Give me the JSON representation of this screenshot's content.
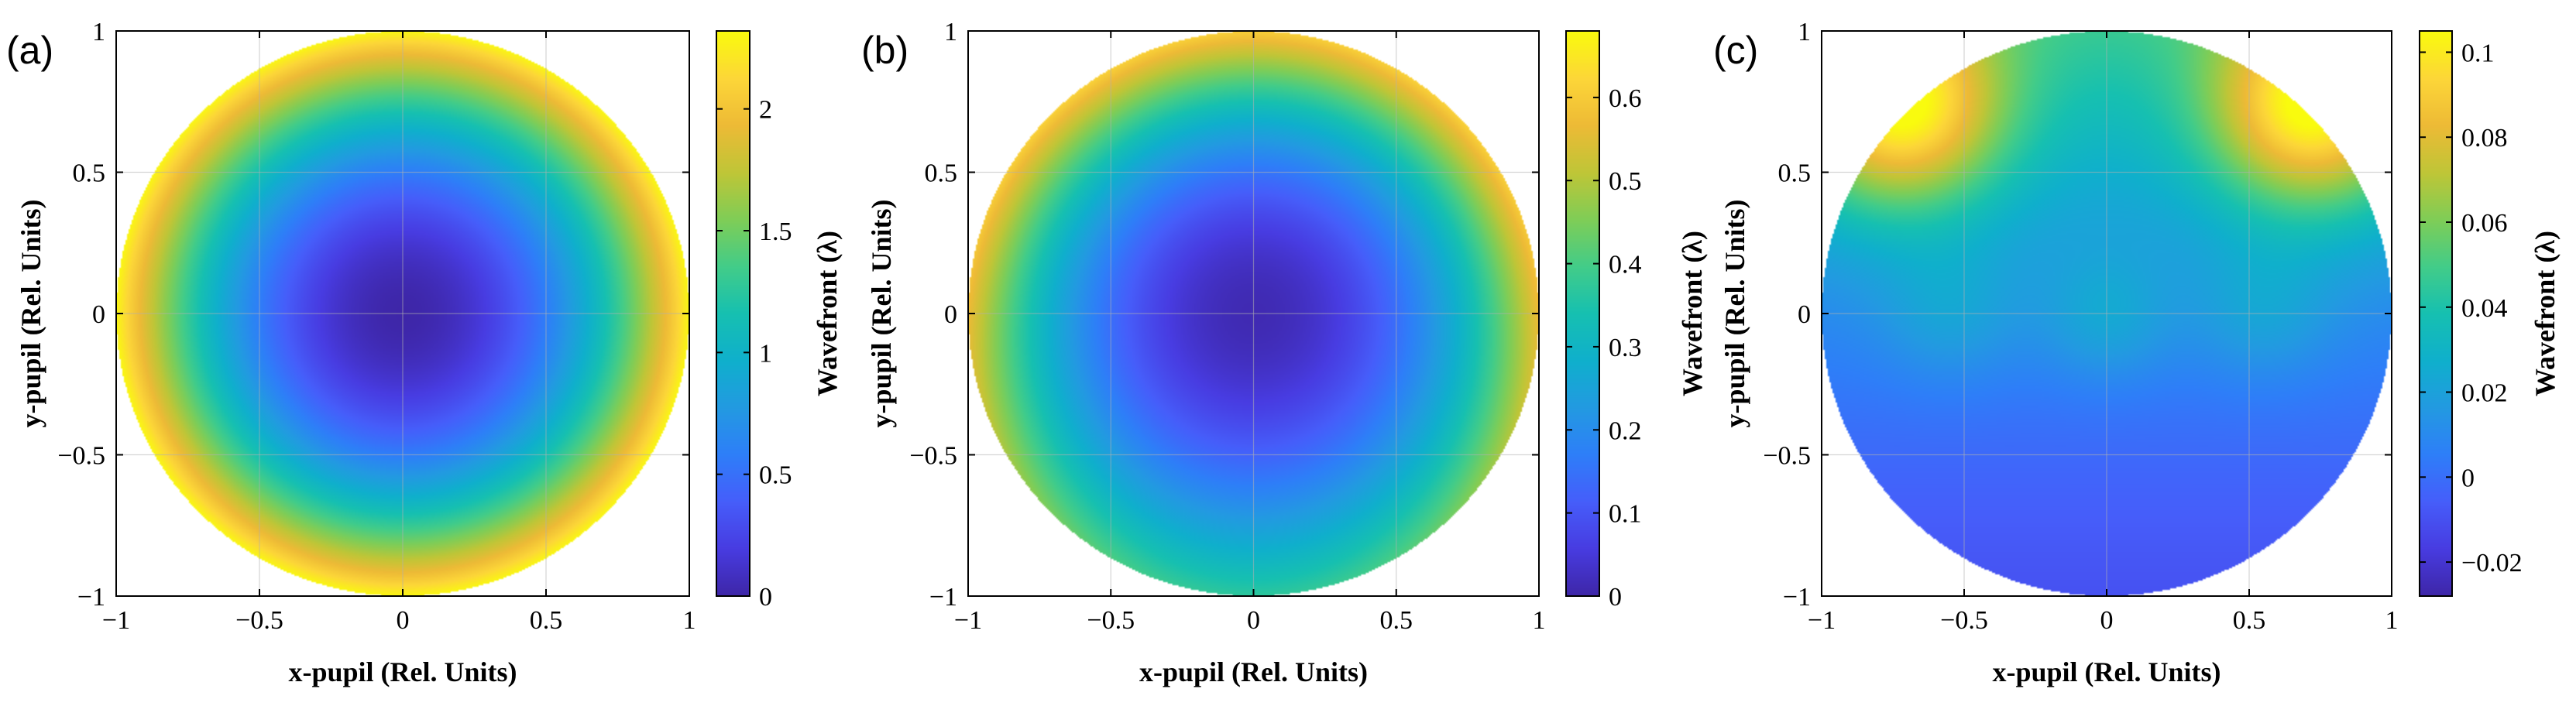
{
  "chart_data": [
    {
      "type": "heatmap",
      "panel_label": "(a)",
      "xlabel": "x-pupil (Rel. Units)",
      "ylabel": "y-pupil (Rel. Units)",
      "xlim": [
        -1,
        1
      ],
      "ylim": [
        -1,
        1
      ],
      "xticks": [
        "-1",
        "-0.5",
        "0",
        "0.5",
        "1"
      ],
      "yticks": [
        "-1",
        "-0.5",
        "0",
        "0.5",
        "1"
      ],
      "grid": true,
      "colorbar": {
        "label": "Wavefront (λ)",
        "range": [
          0,
          2.32
        ],
        "ticks": [
          0,
          0.5,
          1,
          1.5,
          2
        ],
        "tick_labels": [
          "0",
          "0.5",
          "1",
          "1.5",
          "2"
        ]
      },
      "surface": {
        "description": "rotationally symmetric defocus: W = 2.3·r²",
        "center_value": 0,
        "edge_value": 2.3,
        "min": 0,
        "max": 2.3
      }
    },
    {
      "type": "heatmap",
      "panel_label": "(b)",
      "xlabel": "x-pupil (Rel. Units)",
      "ylabel": "y-pupil (Rel. Units)",
      "xlim": [
        -1,
        1
      ],
      "ylim": [
        -1,
        1
      ],
      "xticks": [
        "-1",
        "-0.5",
        "0",
        "0.5",
        "1"
      ],
      "yticks": [
        "-1",
        "-0.5",
        "0",
        "0.5",
        "1"
      ],
      "grid": true,
      "colorbar": {
        "label": "Wavefront (λ)",
        "range": [
          0,
          0.68
        ],
        "ticks": [
          0,
          0.1,
          0.2,
          0.3,
          0.4,
          0.5,
          0.6
        ],
        "tick_labels": [
          "0",
          "0.1",
          "0.2",
          "0.3",
          "0.4",
          "0.5",
          "0.6"
        ]
      },
      "surface": {
        "description": "residual wavefront, minimum near center, higher at upper edge",
        "center_value": 0,
        "top_edge_value": 0.66,
        "bottom_edge_value": 0.42,
        "side_edge_value": 0.6,
        "min": 0,
        "max": 0.66
      }
    },
    {
      "type": "heatmap",
      "panel_label": "(c)",
      "xlabel": "x-pupil (Rel. Units)",
      "ylabel": "y-pupil (Rel. Units)",
      "xlim": [
        -1,
        1
      ],
      "ylim": [
        -1,
        1
      ],
      "xticks": [
        "-1",
        "-0.5",
        "0",
        "0.5",
        "1"
      ],
      "yticks": [
        "-1",
        "-0.5",
        "0",
        "0.5",
        "1"
      ],
      "grid": true,
      "colorbar": {
        "label": "Wavefront (λ)",
        "range": [
          -0.028,
          0.105
        ],
        "ticks": [
          -0.02,
          0,
          0.02,
          0.04,
          0.06,
          0.08,
          0.1
        ],
        "tick_labels": [
          "-0.02",
          "0",
          "0.02",
          "0.04",
          "0.06",
          "0.08",
          "0.1"
        ]
      },
      "surface": {
        "description": "small residual: high in upper-left and upper-right, low across bottom",
        "center_value": 0.025,
        "upper_corners_value": 0.1,
        "bottom_value": -0.025,
        "min": -0.028,
        "max": 0.105
      }
    }
  ]
}
